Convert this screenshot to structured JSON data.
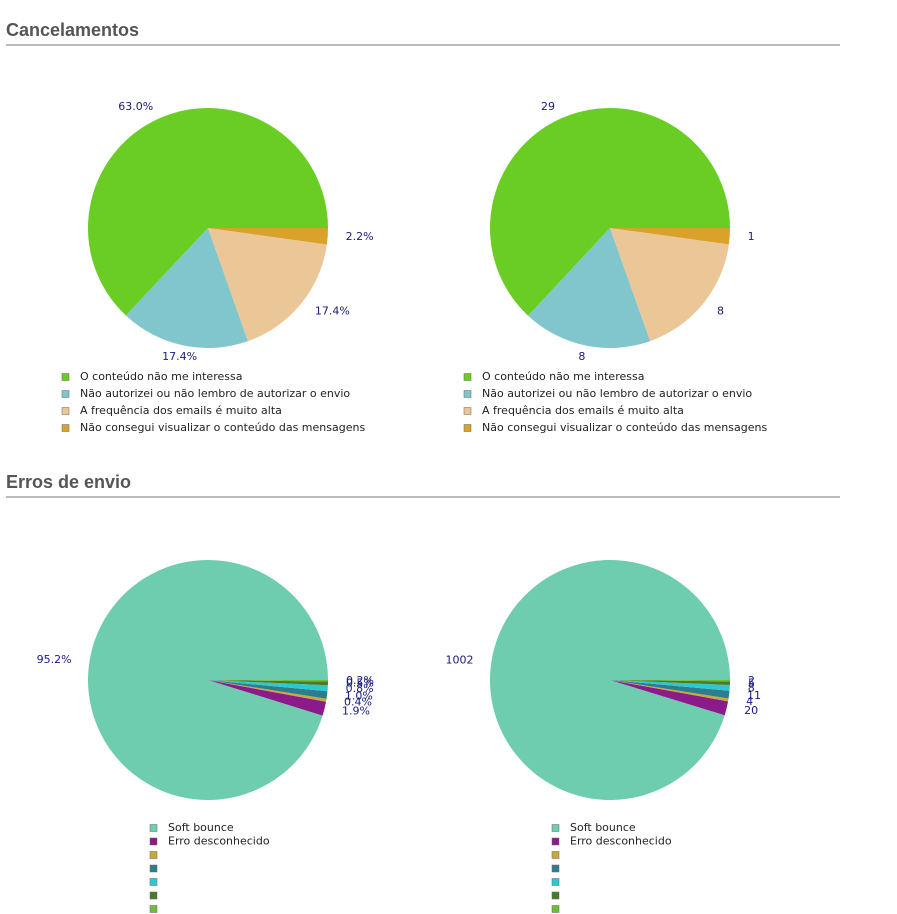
{
  "sections": [
    {
      "title": "Cancelamentos"
    },
    {
      "title": "Erros de envio"
    }
  ],
  "chart_data": [
    {
      "type": "pie",
      "categories": [
        "O conteúdo não me interessa",
        "Não autorizei ou não lembro de autorizar o envio",
        "A frequência dos emails é muito alta",
        "Não consegui visualizar o conteúdo das mensagens"
      ],
      "values": [
        63.0,
        17.4,
        17.4,
        2.2
      ],
      "value_labels": [
        "63.0%",
        "17.4%",
        "17.4%",
        "2.2%"
      ],
      "colors": [
        "#6acd24",
        "#80c6cc",
        "#ebc696",
        "#d9a22a"
      ]
    },
    {
      "type": "pie",
      "categories": [
        "O conteúdo não me interessa",
        "Não autorizei ou não lembro de autorizar o envio",
        "A frequência dos emails é muito alta",
        "Não consegui visualizar o conteúdo das mensagens"
      ],
      "values": [
        29,
        8,
        8,
        1
      ],
      "colors": [
        "#6acd24",
        "#80c6cc",
        "#ebc696",
        "#d9a22a"
      ]
    },
    {
      "type": "pie",
      "categories": [
        "Soft bounce",
        "Erro desconhecido",
        null,
        null,
        null,
        null,
        null
      ],
      "values": [
        95.2,
        1.9,
        0.4,
        1.0,
        0.8,
        0.5,
        0.2
      ],
      "value_labels": [
        "95.2%",
        "1.9%",
        "0.4%",
        "1.0%",
        "0.8%",
        "0.5%",
        "0.2%"
      ],
      "colors": [
        "#6dcdae",
        "#8b1a8b",
        "#c8a83a",
        "#2e7d8c",
        "#2ec8d0",
        "#4a7a2a",
        "#6abf3a"
      ]
    },
    {
      "type": "pie",
      "categories": [
        "Soft bounce",
        "Erro desconhecido",
        null,
        null,
        null,
        null,
        null
      ],
      "values": [
        1002,
        20,
        4,
        11,
        8,
        5,
        2
      ],
      "colors": [
        "#6dcdae",
        "#8b1a8b",
        "#c8a83a",
        "#2e7d8c",
        "#2ec8d0",
        "#4a7a2a",
        "#6abf3a"
      ]
    }
  ]
}
